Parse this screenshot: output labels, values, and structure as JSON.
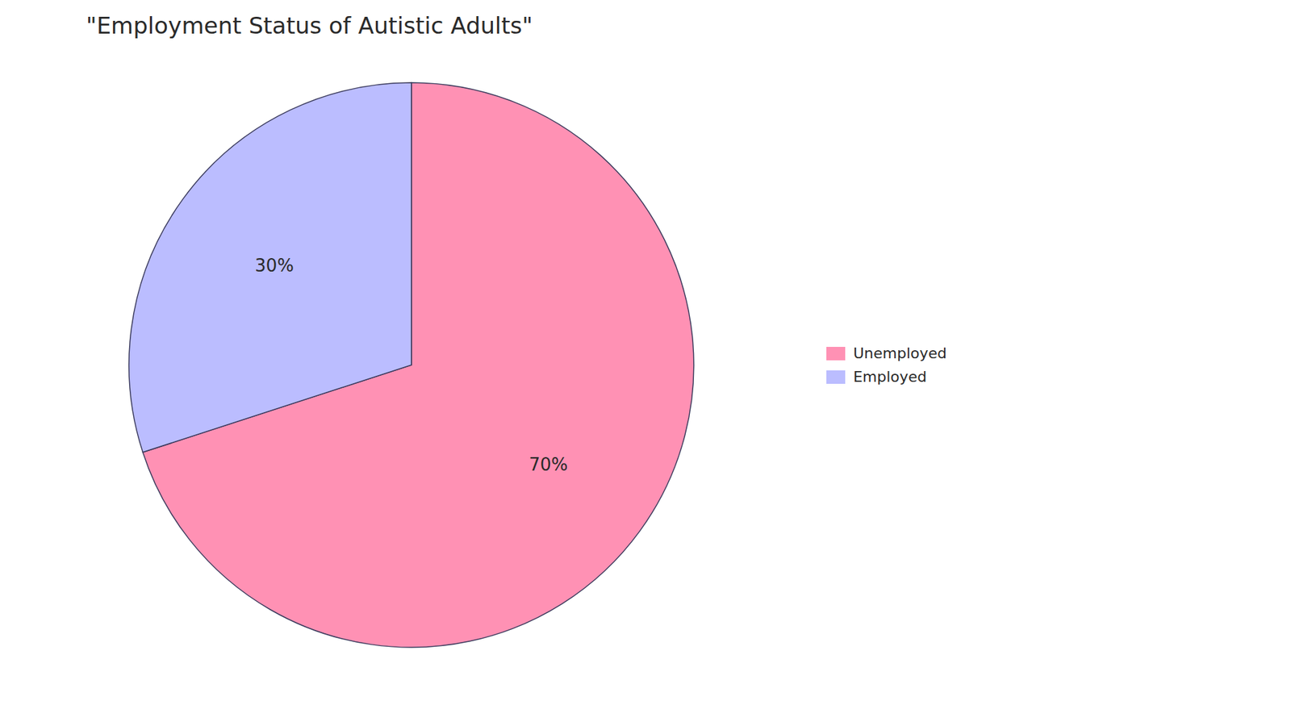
{
  "chart_data": {
    "type": "pie",
    "title": "\"Employment Status of Autistic Adults\"",
    "categories": [
      "Unemployed",
      "Employed"
    ],
    "values": [
      70,
      30
    ],
    "value_labels": [
      "70%",
      "30%"
    ],
    "colors": [
      "#FF91B4",
      "#BBBDFF"
    ],
    "data_labels": true,
    "legend": "right"
  }
}
